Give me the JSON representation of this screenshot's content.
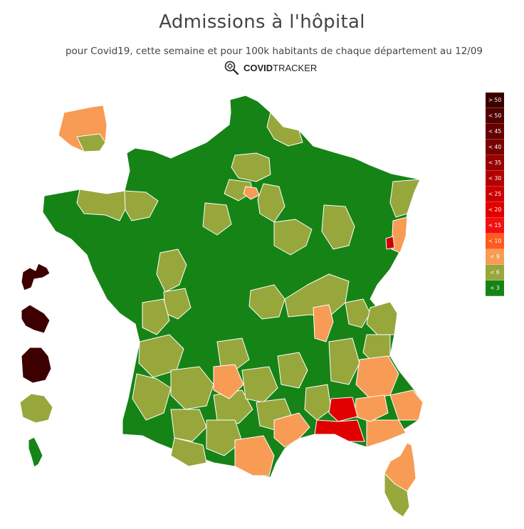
{
  "header": {
    "title": "Admissions à l'hôpital",
    "subtitle": "pour Covid19, cette semaine et pour 100k habitants de chaque département au 12/09",
    "brand_bold": "COVID",
    "brand_light": "TRACKER",
    "brand_icon": "virus-magnifier-icon"
  },
  "legend": [
    {
      "label": "> 50",
      "color": "#3d0000"
    },
    {
      "label": "< 50",
      "color": "#520000"
    },
    {
      "label": "< 45",
      "color": "#660000"
    },
    {
      "label": "< 40",
      "color": "#7a0000"
    },
    {
      "label": "< 35",
      "color": "#990000"
    },
    {
      "label": "< 30",
      "color": "#b30000"
    },
    {
      "label": "< 25",
      "color": "#cc0000"
    },
    {
      "label": "< 20",
      "color": "#e00000"
    },
    {
      "label": "< 15",
      "color": "#f01010"
    },
    {
      "label": "< 10",
      "color": "#ff5a1f"
    },
    {
      "label": "< 9",
      "color": "#f89b54"
    },
    {
      "label": "< 6",
      "color": "#97a73c"
    },
    {
      "label": "< 3",
      "color": "#168316"
    }
  ],
  "colors": {
    "dark_green": "#168316",
    "olive": "#97a73c",
    "orange": "#f89b54",
    "red": "#e00000",
    "maroon": "#520000",
    "border": "#ffffff"
  }
}
